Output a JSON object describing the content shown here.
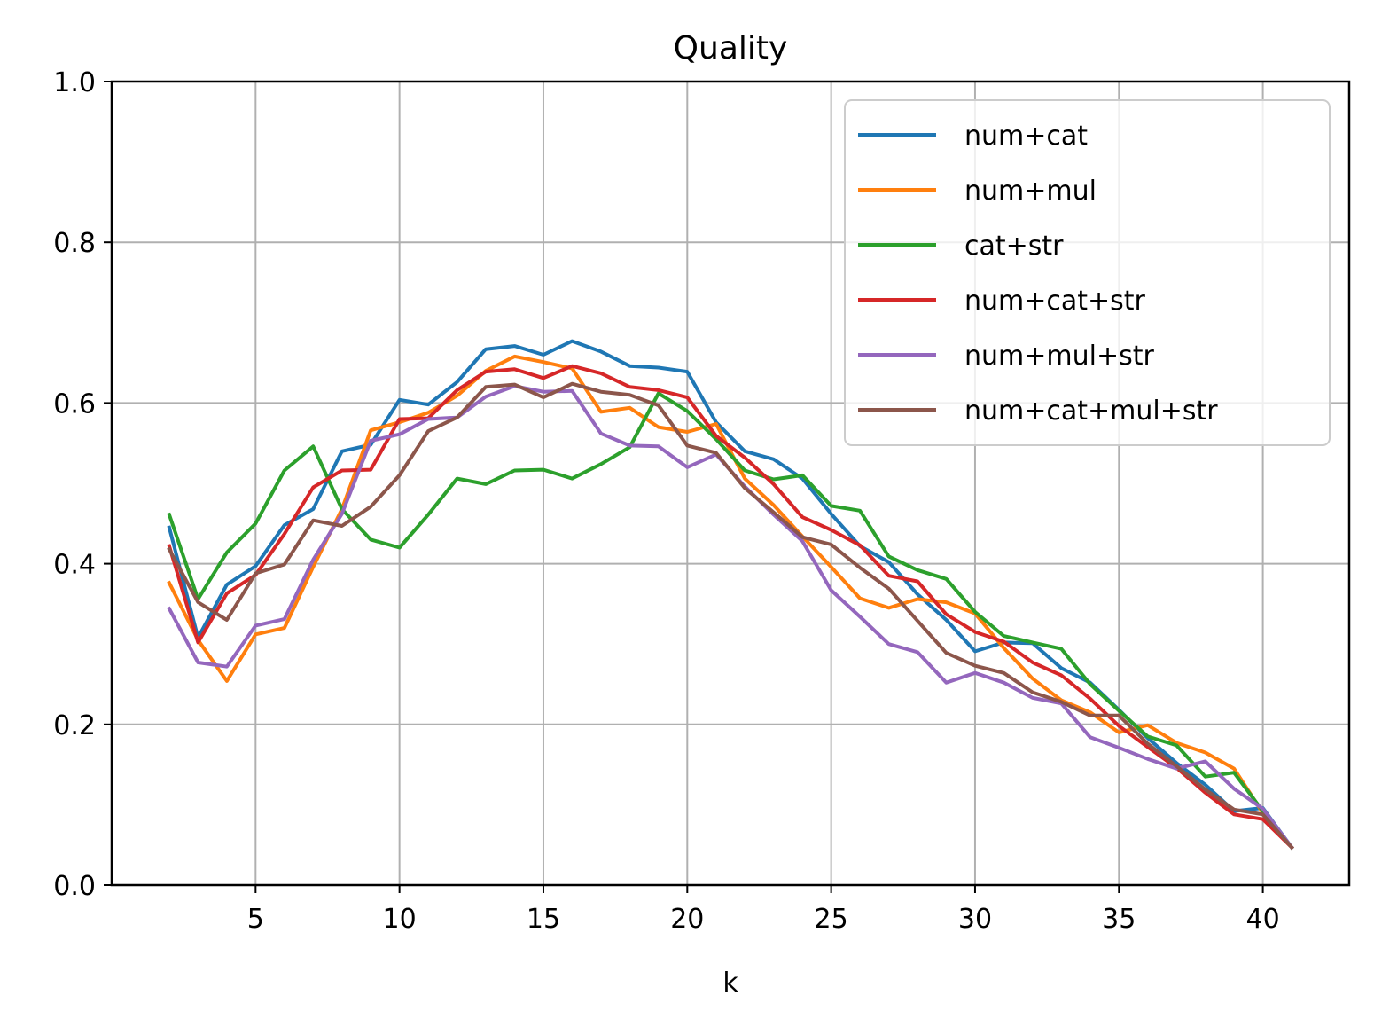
{
  "chart_data": {
    "type": "line",
    "title": "Quality",
    "xlabel": "k",
    "ylabel": "",
    "xlim": [
      0,
      43
    ],
    "ylim": [
      0,
      1
    ],
    "xticks": [
      5,
      10,
      15,
      20,
      25,
      30,
      35,
      40
    ],
    "yticks": [
      0.0,
      0.2,
      0.4,
      0.6,
      0.8,
      1.0
    ],
    "xtick_labels": [
      "5",
      "10",
      "15",
      "20",
      "25",
      "30",
      "35",
      "40"
    ],
    "ytick_labels": [
      "0.0",
      "0.2",
      "0.4",
      "0.6",
      "0.8",
      "1.0"
    ],
    "grid": true,
    "legend_position": "upper-right",
    "x": [
      2,
      3,
      4,
      5,
      6,
      7,
      8,
      9,
      10,
      11,
      12,
      13,
      14,
      15,
      16,
      17,
      18,
      19,
      20,
      21,
      22,
      23,
      24,
      25,
      26,
      27,
      28,
      29,
      30,
      31,
      32,
      33,
      34,
      35,
      36,
      37,
      38,
      39,
      40,
      41
    ],
    "series": [
      {
        "name": "num+cat",
        "color": "#1f77b4",
        "values": [
          0.445,
          0.308,
          0.374,
          0.397,
          0.448,
          0.468,
          0.54,
          0.548,
          0.604,
          0.598,
          0.626,
          0.667,
          0.671,
          0.66,
          0.677,
          0.664,
          0.646,
          0.644,
          0.639,
          0.576,
          0.54,
          0.53,
          0.506,
          0.462,
          0.422,
          0.402,
          0.362,
          0.33,
          0.291,
          0.302,
          0.301,
          0.27,
          0.252,
          0.218,
          0.183,
          0.152,
          0.125,
          0.092,
          0.096,
          0.047
        ]
      },
      {
        "name": "num+mul",
        "color": "#ff7f0e",
        "values": [
          0.376,
          0.305,
          0.254,
          0.312,
          0.32,
          0.396,
          0.468,
          0.566,
          0.576,
          0.588,
          0.609,
          0.64,
          0.658,
          0.651,
          0.643,
          0.589,
          0.594,
          0.57,
          0.564,
          0.574,
          0.506,
          0.473,
          0.434,
          0.396,
          0.357,
          0.345,
          0.356,
          0.352,
          0.338,
          0.295,
          0.257,
          0.23,
          0.215,
          0.19,
          0.199,
          0.177,
          0.165,
          0.145,
          0.09,
          0.047
        ]
      },
      {
        "name": "cat+str",
        "color": "#2ca02c",
        "values": [
          0.461,
          0.356,
          0.414,
          0.45,
          0.516,
          0.546,
          0.468,
          0.43,
          0.42,
          0.461,
          0.506,
          0.499,
          0.516,
          0.517,
          0.506,
          0.524,
          0.545,
          0.612,
          0.59,
          0.555,
          0.516,
          0.505,
          0.51,
          0.472,
          0.466,
          0.409,
          0.392,
          0.381,
          0.34,
          0.31,
          0.302,
          0.294,
          0.25,
          0.217,
          0.185,
          0.174,
          0.135,
          0.14,
          0.092,
          0.047
        ]
      },
      {
        "name": "num+cat+str",
        "color": "#d62728",
        "values": [
          0.422,
          0.302,
          0.363,
          0.386,
          0.437,
          0.495,
          0.516,
          0.517,
          0.58,
          0.581,
          0.616,
          0.639,
          0.642,
          0.631,
          0.646,
          0.637,
          0.62,
          0.616,
          0.607,
          0.559,
          0.532,
          0.499,
          0.458,
          0.442,
          0.423,
          0.385,
          0.378,
          0.337,
          0.315,
          0.303,
          0.277,
          0.261,
          0.232,
          0.198,
          0.172,
          0.146,
          0.115,
          0.088,
          0.082,
          0.047
        ]
      },
      {
        "name": "num+mul+str",
        "color": "#9467bd",
        "values": [
          0.344,
          0.277,
          0.272,
          0.323,
          0.331,
          0.405,
          0.462,
          0.553,
          0.561,
          0.58,
          0.582,
          0.608,
          0.621,
          0.614,
          0.615,
          0.562,
          0.547,
          0.546,
          0.52,
          0.536,
          0.496,
          0.461,
          0.428,
          0.367,
          0.334,
          0.3,
          0.29,
          0.252,
          0.264,
          0.252,
          0.233,
          0.226,
          0.184,
          0.171,
          0.157,
          0.145,
          0.154,
          0.12,
          0.095,
          0.047
        ]
      },
      {
        "name": "num+cat+mul+str",
        "color": "#8c564b",
        "values": [
          0.418,
          0.352,
          0.33,
          0.388,
          0.399,
          0.454,
          0.447,
          0.471,
          0.51,
          0.565,
          0.582,
          0.62,
          0.623,
          0.607,
          0.624,
          0.614,
          0.61,
          0.597,
          0.547,
          0.538,
          0.494,
          0.464,
          0.433,
          0.424,
          0.395,
          0.369,
          0.329,
          0.289,
          0.273,
          0.264,
          0.24,
          0.228,
          0.211,
          0.211,
          0.176,
          0.148,
          0.119,
          0.094,
          0.088,
          0.047
        ]
      }
    ]
  }
}
